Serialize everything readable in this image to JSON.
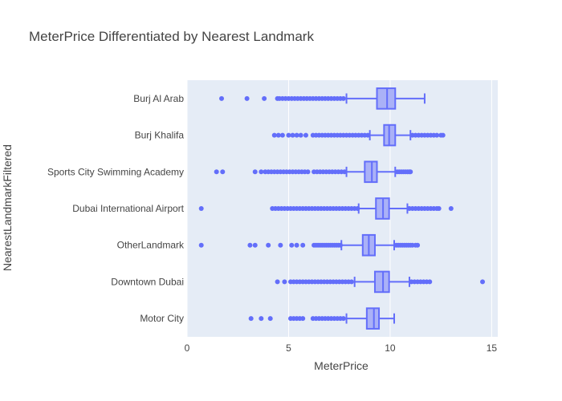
{
  "chart_data": {
    "type": "box",
    "orientation": "horizontal",
    "title": "MeterPrice Differentiated by Nearest Landmark",
    "xlabel": "MeterPrice",
    "ylabel": "NearestLandmarkFiltered",
    "xlim": [
      0,
      15.3
    ],
    "xticks": [
      0,
      5,
      10,
      15
    ],
    "grid": true,
    "legend": "none",
    "colors": {
      "box_fill": "#aab1f7",
      "box_line": "#636efa",
      "plot_bg": "#e5ecf6",
      "grid": "#ffffff"
    },
    "categories": [
      "Burj Al Arab",
      "Burj Khalifa",
      "Sports City Swimming Academy",
      "Dubai International Airport",
      "OtherLandmark",
      "Downtown Dubai",
      "Motor City"
    ],
    "series": [
      {
        "category": "Burj Al Arab",
        "lower_whisker": 7.85,
        "q1": 9.35,
        "median": 9.85,
        "q3": 10.25,
        "upper_whisker": 11.7,
        "outliers": [
          1.7,
          2.95,
          3.8,
          4.45,
          4.55,
          4.7,
          4.85,
          5.0,
          5.15,
          5.3,
          5.45,
          5.6,
          5.75,
          5.9,
          6.05,
          6.2,
          6.35,
          6.5,
          6.65,
          6.8,
          6.95,
          7.1,
          7.25,
          7.4,
          7.55,
          7.7
        ]
      },
      {
        "category": "Burj Khalifa",
        "lower_whisker": 9.0,
        "q1": 9.7,
        "median": 9.95,
        "q3": 10.25,
        "upper_whisker": 11.0,
        "outliers": [
          4.3,
          4.5,
          4.7,
          5.0,
          5.2,
          5.4,
          5.6,
          5.85,
          6.2,
          6.35,
          6.5,
          6.65,
          6.8,
          6.95,
          7.1,
          7.25,
          7.4,
          7.55,
          7.7,
          7.85,
          8.0,
          8.15,
          8.3,
          8.45,
          8.6,
          8.75,
          8.9,
          11.1,
          11.25,
          11.4,
          11.55,
          11.7,
          11.85,
          12.0,
          12.15,
          12.3,
          12.5,
          12.6
        ]
      },
      {
        "category": "Sports City Swimming Academy",
        "lower_whisker": 7.85,
        "q1": 8.75,
        "median": 9.1,
        "q3": 9.35,
        "upper_whisker": 10.25,
        "outliers": [
          1.45,
          1.75,
          3.35,
          3.65,
          3.85,
          4.0,
          4.15,
          4.3,
          4.45,
          4.6,
          4.75,
          4.9,
          5.05,
          5.2,
          5.35,
          5.5,
          5.65,
          5.8,
          5.95,
          6.25,
          6.4,
          6.55,
          6.7,
          6.85,
          7.0,
          7.15,
          7.3,
          7.45,
          7.6,
          7.75,
          10.35,
          10.45,
          10.55,
          10.65,
          10.75,
          10.85,
          10.95,
          11.0
        ]
      },
      {
        "category": "Dubai International Airport",
        "lower_whisker": 8.45,
        "q1": 9.3,
        "median": 9.65,
        "q3": 9.95,
        "upper_whisker": 10.85,
        "outliers": [
          0.7,
          4.2,
          4.35,
          4.5,
          4.65,
          4.8,
          4.95,
          5.1,
          5.25,
          5.4,
          5.55,
          5.7,
          5.85,
          6.0,
          6.15,
          6.3,
          6.45,
          6.6,
          6.75,
          6.9,
          7.05,
          7.2,
          7.35,
          7.5,
          7.65,
          7.8,
          7.95,
          8.1,
          8.25,
          8.4,
          10.95,
          11.1,
          11.25,
          11.4,
          11.55,
          11.7,
          11.85,
          12.0,
          12.15,
          12.3,
          12.4,
          13.0
        ]
      },
      {
        "category": "OtherLandmark",
        "lower_whisker": 7.6,
        "q1": 8.65,
        "median": 8.95,
        "q3": 9.25,
        "upper_whisker": 10.2,
        "outliers": [
          0.7,
          3.1,
          3.35,
          4.0,
          4.6,
          5.15,
          5.4,
          5.7,
          6.25,
          6.35,
          6.45,
          6.55,
          6.65,
          6.75,
          6.85,
          6.95,
          7.05,
          7.15,
          7.25,
          7.35,
          7.45,
          7.55,
          10.3,
          10.4,
          10.5,
          10.6,
          10.7,
          10.8,
          10.9,
          11.0,
          11.1,
          11.25,
          11.35
        ]
      },
      {
        "category": "Downtown Dubai",
        "lower_whisker": 8.25,
        "q1": 9.25,
        "median": 9.65,
        "q3": 9.95,
        "upper_whisker": 10.95,
        "outliers": [
          4.45,
          4.8,
          5.1,
          5.25,
          5.4,
          5.55,
          5.7,
          5.85,
          6.0,
          6.15,
          6.3,
          6.45,
          6.6,
          6.75,
          6.9,
          7.05,
          7.2,
          7.35,
          7.5,
          7.65,
          7.8,
          7.95,
          8.1,
          11.05,
          11.2,
          11.35,
          11.5,
          11.65,
          11.8,
          11.95,
          14.55
        ]
      },
      {
        "category": "Motor City",
        "lower_whisker": 7.85,
        "q1": 8.85,
        "median": 9.2,
        "q3": 9.45,
        "upper_whisker": 10.2,
        "outliers": [
          3.15,
          3.65,
          4.1,
          5.1,
          5.25,
          5.4,
          5.55,
          5.7,
          6.2,
          6.35,
          6.5,
          6.65,
          6.8,
          6.95,
          7.1,
          7.25,
          7.4,
          7.55,
          7.7
        ]
      }
    ]
  }
}
